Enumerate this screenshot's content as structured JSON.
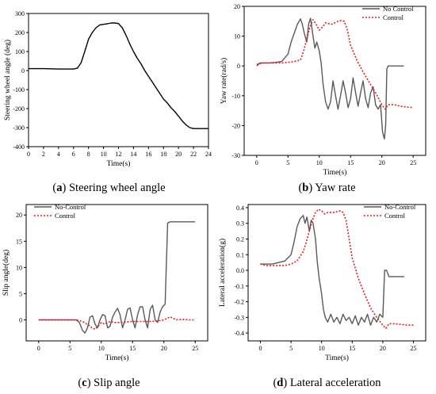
{
  "panels": [
    {
      "letter": "a",
      "caption": "Steering wheel angle",
      "chart_data": {
        "type": "line",
        "xlabel": "Time(s)",
        "ylabel": "Steering wheel angle (deg)",
        "xlim": [
          0,
          24
        ],
        "ylim": [
          -400,
          300
        ],
        "xticks": [
          0,
          2,
          4,
          6,
          8,
          10,
          12,
          14,
          16,
          18,
          20,
          22,
          24
        ],
        "yticks": [
          -400,
          -300,
          -200,
          -100,
          0,
          100,
          200,
          300
        ],
        "grid": false,
        "series": [
          {
            "color": "#000000",
            "dash": "solid",
            "x": [
              0,
              2,
              4,
              6,
              6.5,
              7,
              7.5,
              8,
              8.5,
              9,
              9.5,
              10,
              10.5,
              11,
              11.5,
              12,
              12.5,
              13,
              13.5,
              14,
              14.5,
              15,
              15.5,
              16,
              16.5,
              17,
              17.5,
              18,
              18.5,
              19,
              19.5,
              20,
              20.5,
              21,
              21.5,
              22,
              24
            ],
            "y": [
              10,
              10,
              8,
              8,
              12,
              40,
              100,
              165,
              200,
              225,
              240,
              243,
              246,
              250,
              250,
              247,
              225,
              185,
              140,
              100,
              65,
              35,
              0,
              -30,
              -60,
              -90,
              -120,
              -150,
              -170,
              -195,
              -215,
              -240,
              -265,
              -285,
              -300,
              -305,
              -305
            ]
          }
        ]
      }
    },
    {
      "letter": "b",
      "caption": "Yaw rate",
      "chart_data": {
        "type": "line",
        "xlabel": "Time(s)",
        "ylabel": "Yaw rate(rad/s)",
        "xlim": [
          -2,
          27
        ],
        "ylim": [
          -30,
          20
        ],
        "xticks": [
          0,
          5,
          10,
          15,
          20,
          25
        ],
        "yticks": [
          -30,
          -20,
          -10,
          0,
          10,
          20
        ],
        "grid": false,
        "legend": "top-right",
        "series": [
          {
            "name": "No Control",
            "color": "#595959",
            "dash": "solid",
            "x": [
              0,
              0.5,
              1,
              2,
              3,
              4,
              5,
              5.5,
              6,
              6.5,
              7,
              7.3,
              7.6,
              8,
              8.3,
              8.6,
              8.8,
              9,
              9.3,
              9.6,
              10,
              10.3,
              10.6,
              11,
              11.4,
              11.8,
              12.2,
              12.6,
              13,
              13.4,
              13.8,
              14.2,
              14.6,
              15,
              15.4,
              15.8,
              16.2,
              16.6,
              17,
              17.4,
              17.8,
              18.2,
              18.6,
              19,
              19.4,
              19.8,
              20.1,
              20.4,
              20.6,
              20.8,
              21,
              23.5
            ],
            "y": [
              0,
              1,
              1,
              1,
              1.2,
              1.5,
              4,
              8,
              11,
              14,
              15.8,
              14,
              11,
              8,
              14,
              16,
              13,
              10,
              6,
              8,
              5,
              1,
              -6,
              -12,
              -14.5,
              -12,
              -5,
              -10,
              -14.5,
              -10,
              -5,
              -9,
              -14,
              -11,
              -4,
              -9,
              -13.5,
              -9,
              -5,
              -11,
              -14,
              -9,
              -7,
              -13,
              -14.5,
              -13,
              -22,
              -24.5,
              -20,
              -1,
              0,
              0
            ]
          },
          {
            "name": "Control",
            "color": "#e8191d",
            "dash": "dotted",
            "x": [
              0,
              1,
              2,
              3,
              4,
              5,
              6,
              7,
              7.5,
              8,
              8.5,
              9,
              9.5,
              10,
              10.5,
              11,
              11.5,
              12,
              12.5,
              13,
              13.5,
              14,
              14.5,
              15,
              16,
              17,
              18,
              19,
              19.5,
              20,
              20.5,
              21,
              22,
              23,
              24,
              25
            ],
            "y": [
              0.5,
              1,
              1,
              1,
              1,
              1.2,
              1.5,
              2,
              5,
              9,
              13,
              15.5,
              14,
              12,
              13,
              14.5,
              14.2,
              14,
              14.5,
              15,
              15.2,
              15,
              12,
              7,
              2,
              -2,
              -5.5,
              -9,
              -11,
              -13,
              -14.5,
              -13,
              -13,
              -13.5,
              -13.8,
              -14
            ]
          }
        ]
      }
    },
    {
      "letter": "c",
      "caption": "Slip angle",
      "chart_data": {
        "type": "line",
        "xlabel": "Time(s)",
        "ylabel": "Slip angle(deg)",
        "xlim": [
          -2,
          27
        ],
        "ylim": [
          -4,
          22
        ],
        "xticks": [
          0,
          5,
          10,
          15,
          20,
          25
        ],
        "yticks": [
          0,
          5,
          10,
          15,
          20
        ],
        "grid": false,
        "legend": "top-left",
        "series": [
          {
            "name": "No-Control",
            "color": "#595959",
            "dash": "solid",
            "x": [
              0,
              2,
              4,
              5,
              6,
              6.5,
              7,
              7.4,
              7.8,
              8.2,
              8.6,
              9,
              9.4,
              9.8,
              10.2,
              10.6,
              11,
              11.4,
              11.8,
              12.2,
              12.6,
              13,
              13.4,
              13.8,
              14.2,
              14.6,
              15,
              15.4,
              15.8,
              16.2,
              16.6,
              17,
              17.4,
              17.8,
              18.2,
              18.6,
              19,
              19.4,
              19.8,
              20.2,
              20.6,
              21,
              21.5,
              25
            ],
            "y": [
              0,
              0,
              0,
              0,
              0,
              -0.5,
              -2,
              -2.5,
              -1.5,
              0.5,
              0.8,
              -0.8,
              -1.5,
              0,
              1,
              0.8,
              -1.5,
              -1.2,
              0.5,
              1.5,
              2.2,
              1,
              -1.5,
              0,
              2,
              2.3,
              0,
              -1.5,
              1,
              2.5,
              2.5,
              0,
              -1.5,
              2,
              2.8,
              0,
              -0.5,
              1.5,
              2.5,
              3,
              18.5,
              18.7,
              18.7,
              18.7
            ]
          },
          {
            "name": "Control",
            "color": "#e8191d",
            "dash": "dotted",
            "x": [
              0,
              2,
              4,
              6,
              7,
              8,
              8.5,
              9,
              9.5,
              10,
              10.5,
              11,
              11.5,
              12,
              13,
              14,
              15,
              16,
              17,
              18,
              19,
              20,
              20.5,
              21,
              21.5,
              22,
              23,
              24,
              25
            ],
            "y": [
              0,
              0,
              0,
              0,
              -0.3,
              -1,
              -1.5,
              -1.8,
              -1.2,
              -0.5,
              -0.8,
              -0.5,
              -0.3,
              -0.5,
              -0.5,
              -0.4,
              -0.3,
              -0.3,
              -0.3,
              -0.3,
              -0.2,
              0,
              0.3,
              0.6,
              0.3,
              0,
              0.1,
              0,
              0
            ]
          }
        ]
      }
    },
    {
      "letter": "d",
      "caption": "Lateral acceleration",
      "chart_data": {
        "type": "line",
        "xlabel": "Time(s)",
        "ylabel": "Lateral acceleration(g)",
        "xlim": [
          -2,
          27
        ],
        "ylim": [
          -0.45,
          0.42
        ],
        "xticks": [
          0,
          5,
          10,
          15,
          20,
          25
        ],
        "yticks": [
          -0.4,
          -0.3,
          -0.2,
          -0.1,
          0.0,
          0.1,
          0.2,
          0.3,
          0.4
        ],
        "grid": false,
        "legend": "top-right",
        "series": [
          {
            "name": "No-Control",
            "color": "#595959",
            "dash": "solid",
            "x": [
              0,
              1,
              2,
              3,
              4,
              4.5,
              5,
              5.5,
              6,
              6.5,
              7,
              7.3,
              7.6,
              8,
              8.3,
              8.6,
              9,
              9.3,
              9.6,
              10,
              10.3,
              10.6,
              11,
              11.5,
              12,
              12.5,
              13,
              13.5,
              14,
              14.5,
              15,
              15.5,
              16,
              16.5,
              17,
              17.5,
              18,
              18.5,
              19,
              19.5,
              20,
              20.3,
              20.6,
              21,
              23.5
            ],
            "y": [
              0.04,
              0.04,
              0.04,
              0.05,
              0.06,
              0.08,
              0.1,
              0.18,
              0.28,
              0.33,
              0.35,
              0.3,
              0.34,
              0.25,
              0.32,
              0.3,
              0.2,
              0.05,
              -0.05,
              -0.15,
              -0.25,
              -0.3,
              -0.33,
              -0.28,
              -0.33,
              -0.3,
              -0.34,
              -0.28,
              -0.32,
              -0.3,
              -0.34,
              -0.29,
              -0.35,
              -0.3,
              -0.33,
              -0.28,
              -0.35,
              -0.3,
              -0.33,
              -0.28,
              -0.3,
              0.0,
              0.0,
              -0.04,
              -0.04
            ]
          },
          {
            "name": "Control",
            "color": "#e8191d",
            "dash": "dotted",
            "x": [
              0,
              1,
              2,
              3,
              4,
              5,
              6,
              7,
              7.5,
              8,
              8.5,
              9,
              9.5,
              10,
              10.5,
              11,
              12,
              13,
              13.5,
              14,
              14.5,
              15,
              16,
              17,
              18,
              19,
              20,
              20.5,
              21,
              22,
              23,
              24,
              25
            ],
            "y": [
              0.04,
              0.03,
              0.03,
              0.03,
              0.03,
              0.04,
              0.06,
              0.12,
              0.18,
              0.25,
              0.32,
              0.37,
              0.39,
              0.38,
              0.36,
              0.37,
              0.37,
              0.38,
              0.37,
              0.32,
              0.2,
              0.08,
              -0.05,
              -0.15,
              -0.24,
              -0.3,
              -0.35,
              -0.37,
              -0.34,
              -0.34,
              -0.345,
              -0.35,
              -0.35
            ]
          }
        ]
      }
    }
  ]
}
